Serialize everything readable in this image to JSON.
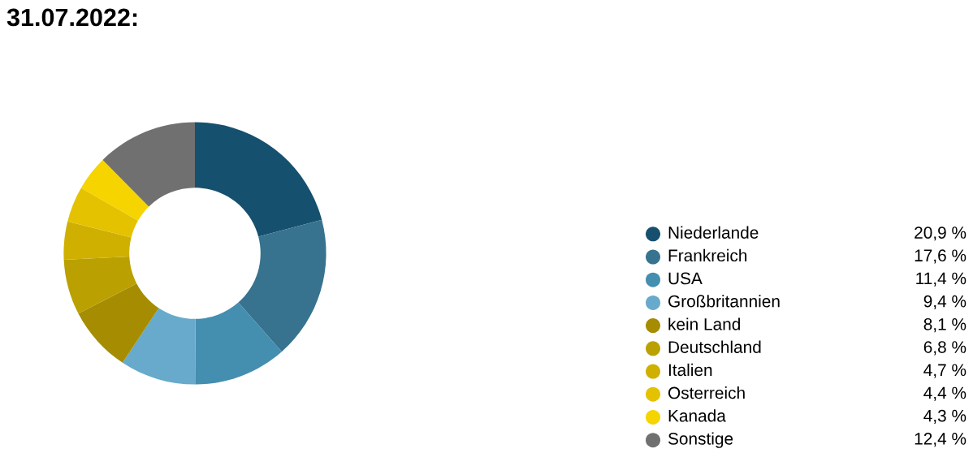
{
  "chart_data": {
    "type": "donut",
    "title": "31.07.2022:",
    "categories": [
      "Niederlande",
      "Frankreich",
      "USA",
      "Großbritannien",
      "kein Land",
      "Deutschland",
      "Italien",
      "Osterreich",
      "Kanada",
      "Sonstige"
    ],
    "values": [
      20.9,
      17.6,
      11.4,
      9.4,
      8.1,
      6.8,
      4.7,
      4.4,
      4.3,
      12.4
    ],
    "value_labels": [
      "20,9 %",
      "17,6 %",
      "11,4 %",
      "9,4 %",
      "8,1 %",
      "6,8 %",
      "4,7 %",
      "4,4 %",
      "4,3 %",
      "12,4 %"
    ],
    "colors": [
      "#16506f",
      "#37738f",
      "#448eb0",
      "#67aacb",
      "#a68c00",
      "#baa000",
      "#cfb000",
      "#e4c200",
      "#f5d400",
      "#707070"
    ],
    "legend": "right"
  }
}
